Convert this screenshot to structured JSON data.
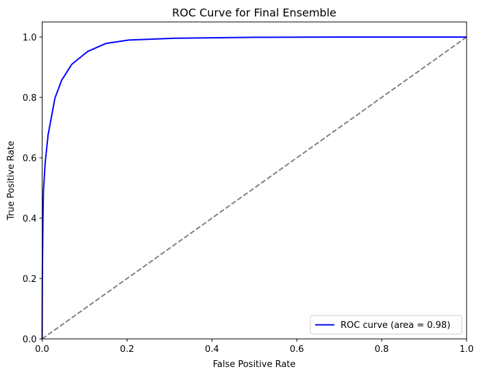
{
  "chart_data": {
    "type": "line",
    "title": "ROC Curve for Final Ensemble",
    "xlabel": "False Positive Rate",
    "ylabel": "True Positive Rate",
    "xlim": [
      0.0,
      1.0
    ],
    "ylim": [
      0.0,
      1.05
    ],
    "xticks": [
      "0.0",
      "0.2",
      "0.4",
      "0.6",
      "0.8",
      "1.0"
    ],
    "yticks": [
      "0.0",
      "0.2",
      "0.4",
      "0.6",
      "0.8",
      "1.0"
    ],
    "grid": false,
    "legend": {
      "placement": "lower right",
      "entries": [
        "ROC curve (area = 0.98)"
      ]
    },
    "series": [
      {
        "name": "ROC curve (area = 0.98)",
        "color": "#0000ff",
        "style": "solid",
        "x": [
          0.0,
          0.0005,
          0.002,
          0.003,
          0.007,
          0.014,
          0.03,
          0.046,
          0.07,
          0.107,
          0.151,
          0.204,
          0.312,
          0.5,
          0.7,
          1.0
        ],
        "y": [
          0.0,
          0.2,
          0.4,
          0.49,
          0.58,
          0.676,
          0.797,
          0.857,
          0.91,
          0.952,
          0.979,
          0.99,
          0.996,
          0.999,
          1.0,
          1.0
        ]
      },
      {
        "color": "#808080",
        "style": "dashed",
        "x": [
          0.0,
          1.0
        ],
        "y": [
          0.0,
          1.0
        ]
      }
    ]
  }
}
